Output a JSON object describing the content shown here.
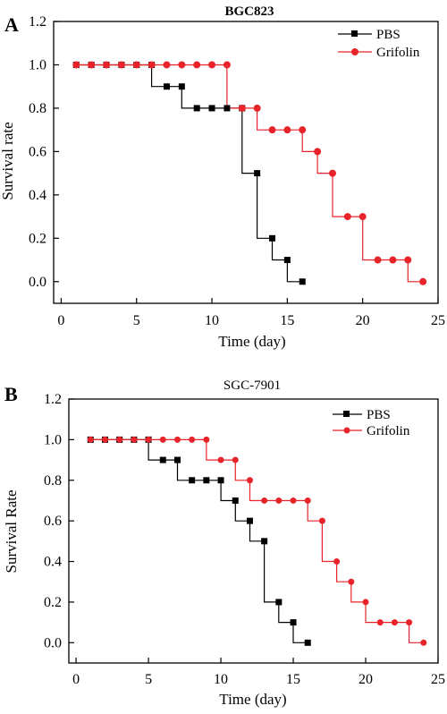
{
  "chart_data": [
    {
      "type": "line",
      "step": true,
      "panel_label": "A",
      "title": "BGC823",
      "xlabel": "Time (day)",
      "ylabel": "Survival rate",
      "xlim": [
        -0.5,
        25
      ],
      "ylim": [
        -0.1,
        1.2
      ],
      "xticks": [
        0,
        5,
        10,
        15,
        20,
        25
      ],
      "yticks": [
        0.0,
        0.2,
        0.4,
        0.6,
        0.8,
        1.0,
        1.2
      ],
      "ytick_labels": [
        "0.0",
        "0.2",
        "0.4",
        "0.6",
        "0.8",
        "1.0",
        "1.2"
      ],
      "legend_position": "top-right",
      "series": [
        {
          "name": "PBS",
          "color": "#000000",
          "marker": "square",
          "points": [
            [
              1,
              1.0
            ],
            [
              2,
              1.0
            ],
            [
              3,
              1.0
            ],
            [
              4,
              1.0
            ],
            [
              5,
              1.0
            ],
            [
              6,
              1.0
            ],
            [
              7,
              0.9
            ],
            [
              8,
              0.9
            ],
            [
              9,
              0.8
            ],
            [
              10,
              0.8
            ],
            [
              11,
              0.8
            ],
            [
              12,
              0.8
            ],
            [
              13,
              0.5
            ],
            [
              14,
              0.2
            ],
            [
              15,
              0.1
            ],
            [
              16,
              0.0
            ]
          ],
          "steps": [
            [
              1,
              1.0
            ],
            [
              6,
              1.0
            ],
            [
              6,
              0.9
            ],
            [
              8,
              0.9
            ],
            [
              8,
              0.8
            ],
            [
              12,
              0.8
            ],
            [
              12,
              0.5
            ],
            [
              13,
              0.5
            ],
            [
              13,
              0.2
            ],
            [
              14,
              0.2
            ],
            [
              14,
              0.1
            ],
            [
              15,
              0.1
            ],
            [
              15,
              0.0
            ],
            [
              16,
              0.0
            ]
          ]
        },
        {
          "name": "Grifolin",
          "color": "#e8242a",
          "marker": "circle",
          "points": [
            [
              1,
              1.0
            ],
            [
              2,
              1.0
            ],
            [
              3,
              1.0
            ],
            [
              4,
              1.0
            ],
            [
              5,
              1.0
            ],
            [
              6,
              1.0
            ],
            [
              7,
              1.0
            ],
            [
              8,
              1.0
            ],
            [
              9,
              1.0
            ],
            [
              10,
              1.0
            ],
            [
              11,
              1.0
            ],
            [
              12,
              0.8
            ],
            [
              13,
              0.8
            ],
            [
              14,
              0.7
            ],
            [
              15,
              0.7
            ],
            [
              16,
              0.7
            ],
            [
              17,
              0.6
            ],
            [
              18,
              0.5
            ],
            [
              19,
              0.3
            ],
            [
              20,
              0.3
            ],
            [
              21,
              0.1
            ],
            [
              22,
              0.1
            ],
            [
              23,
              0.1
            ],
            [
              24,
              0.0
            ]
          ],
          "steps": [
            [
              1,
              1.0
            ],
            [
              11,
              1.0
            ],
            [
              11,
              0.8
            ],
            [
              13,
              0.8
            ],
            [
              13,
              0.7
            ],
            [
              16,
              0.7
            ],
            [
              16,
              0.6
            ],
            [
              17,
              0.6
            ],
            [
              17,
              0.5
            ],
            [
              18,
              0.5
            ],
            [
              18,
              0.3
            ],
            [
              20,
              0.3
            ],
            [
              20,
              0.1
            ],
            [
              23,
              0.1
            ],
            [
              23,
              0.0
            ],
            [
              24,
              0.0
            ]
          ]
        }
      ]
    },
    {
      "type": "line",
      "step": true,
      "panel_label": "B",
      "title": "SGC-7901",
      "xlabel": "Time (day)",
      "ylabel": "Survival Rate",
      "xlim": [
        -0.5,
        25
      ],
      "ylim": [
        -0.1,
        1.2
      ],
      "xticks": [
        0,
        5,
        10,
        15,
        20,
        25
      ],
      "yticks": [
        0.0,
        0.2,
        0.4,
        0.6,
        0.8,
        1.0,
        1.2
      ],
      "ytick_labels": [
        "0.0",
        "0.2",
        "0.4",
        "0.6",
        "0.8",
        "1.0",
        "1.2"
      ],
      "legend_position": "top-right",
      "series": [
        {
          "name": "PBS",
          "color": "#000000",
          "marker": "square",
          "points": [
            [
              1,
              1.0
            ],
            [
              2,
              1.0
            ],
            [
              3,
              1.0
            ],
            [
              4,
              1.0
            ],
            [
              5,
              1.0
            ],
            [
              6,
              0.9
            ],
            [
              7,
              0.9
            ],
            [
              8,
              0.8
            ],
            [
              9,
              0.8
            ],
            [
              10,
              0.8
            ],
            [
              11,
              0.7
            ],
            [
              12,
              0.6
            ],
            [
              13,
              0.5
            ],
            [
              14,
              0.2
            ],
            [
              15,
              0.1
            ],
            [
              16,
              0.0
            ]
          ],
          "steps": [
            [
              1,
              1.0
            ],
            [
              5,
              1.0
            ],
            [
              5,
              0.9
            ],
            [
              7,
              0.9
            ],
            [
              7,
              0.8
            ],
            [
              10,
              0.8
            ],
            [
              10,
              0.7
            ],
            [
              11,
              0.7
            ],
            [
              11,
              0.6
            ],
            [
              12,
              0.6
            ],
            [
              12,
              0.5
            ],
            [
              13,
              0.5
            ],
            [
              13,
              0.2
            ],
            [
              14,
              0.2
            ],
            [
              14,
              0.1
            ],
            [
              15,
              0.1
            ],
            [
              15,
              0.0
            ],
            [
              16,
              0.0
            ]
          ]
        },
        {
          "name": "Grifolin",
          "color": "#e8242a",
          "marker": "circle",
          "points": [
            [
              1,
              1.0
            ],
            [
              2,
              1.0
            ],
            [
              3,
              1.0
            ],
            [
              4,
              1.0
            ],
            [
              5,
              1.0
            ],
            [
              6,
              1.0
            ],
            [
              7,
              1.0
            ],
            [
              8,
              1.0
            ],
            [
              9,
              1.0
            ],
            [
              10,
              0.9
            ],
            [
              11,
              0.9
            ],
            [
              12,
              0.8
            ],
            [
              13,
              0.7
            ],
            [
              14,
              0.7
            ],
            [
              15,
              0.7
            ],
            [
              16,
              0.7
            ],
            [
              17,
              0.6
            ],
            [
              18,
              0.4
            ],
            [
              19,
              0.3
            ],
            [
              20,
              0.2
            ],
            [
              21,
              0.1
            ],
            [
              22,
              0.1
            ],
            [
              23,
              0.1
            ],
            [
              24,
              0.0
            ]
          ],
          "steps": [
            [
              1,
              1.0
            ],
            [
              9,
              1.0
            ],
            [
              9,
              0.9
            ],
            [
              11,
              0.9
            ],
            [
              11,
              0.8
            ],
            [
              12,
              0.8
            ],
            [
              12,
              0.7
            ],
            [
              16,
              0.7
            ],
            [
              16,
              0.6
            ],
            [
              17,
              0.6
            ],
            [
              17,
              0.4
            ],
            [
              18,
              0.4
            ],
            [
              18,
              0.3
            ],
            [
              19,
              0.3
            ],
            [
              19,
              0.2
            ],
            [
              20,
              0.2
            ],
            [
              20,
              0.1
            ],
            [
              23,
              0.1
            ],
            [
              23,
              0.0
            ],
            [
              24,
              0.0
            ]
          ]
        }
      ]
    }
  ]
}
